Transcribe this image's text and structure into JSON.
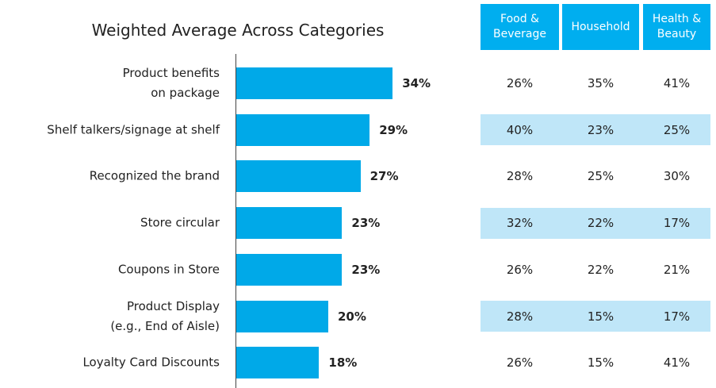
{
  "chart_data": {
    "type": "barh",
    "title": "Weighted Average Across Categories",
    "categories": [
      "Product benefits\non package",
      "Shelf talkers/signage at shelf",
      "Recognized the brand",
      "Store circular",
      "Coupons in Store",
      "Product Display\n(e.g., End of Aisle)",
      "Loyalty Card Discounts"
    ],
    "values": [
      34,
      29,
      27,
      23,
      23,
      20,
      18
    ],
    "value_labels": [
      "34%",
      "29%",
      "27%",
      "23%",
      "23%",
      "20%",
      "18%"
    ],
    "color": "#00a9e8"
  },
  "table": {
    "columns": [
      "Food &\nBeverage",
      "Household",
      "Health &\nBeauty"
    ],
    "rows": [
      [
        "26%",
        "35%",
        "41%"
      ],
      [
        "40%",
        "23%",
        "25%"
      ],
      [
        "28%",
        "25%",
        "30%"
      ],
      [
        "32%",
        "22%",
        "17%"
      ],
      [
        "26%",
        "22%",
        "21%"
      ],
      [
        "28%",
        "15%",
        "17%"
      ],
      [
        "26%",
        "15%",
        "41%"
      ]
    ]
  }
}
